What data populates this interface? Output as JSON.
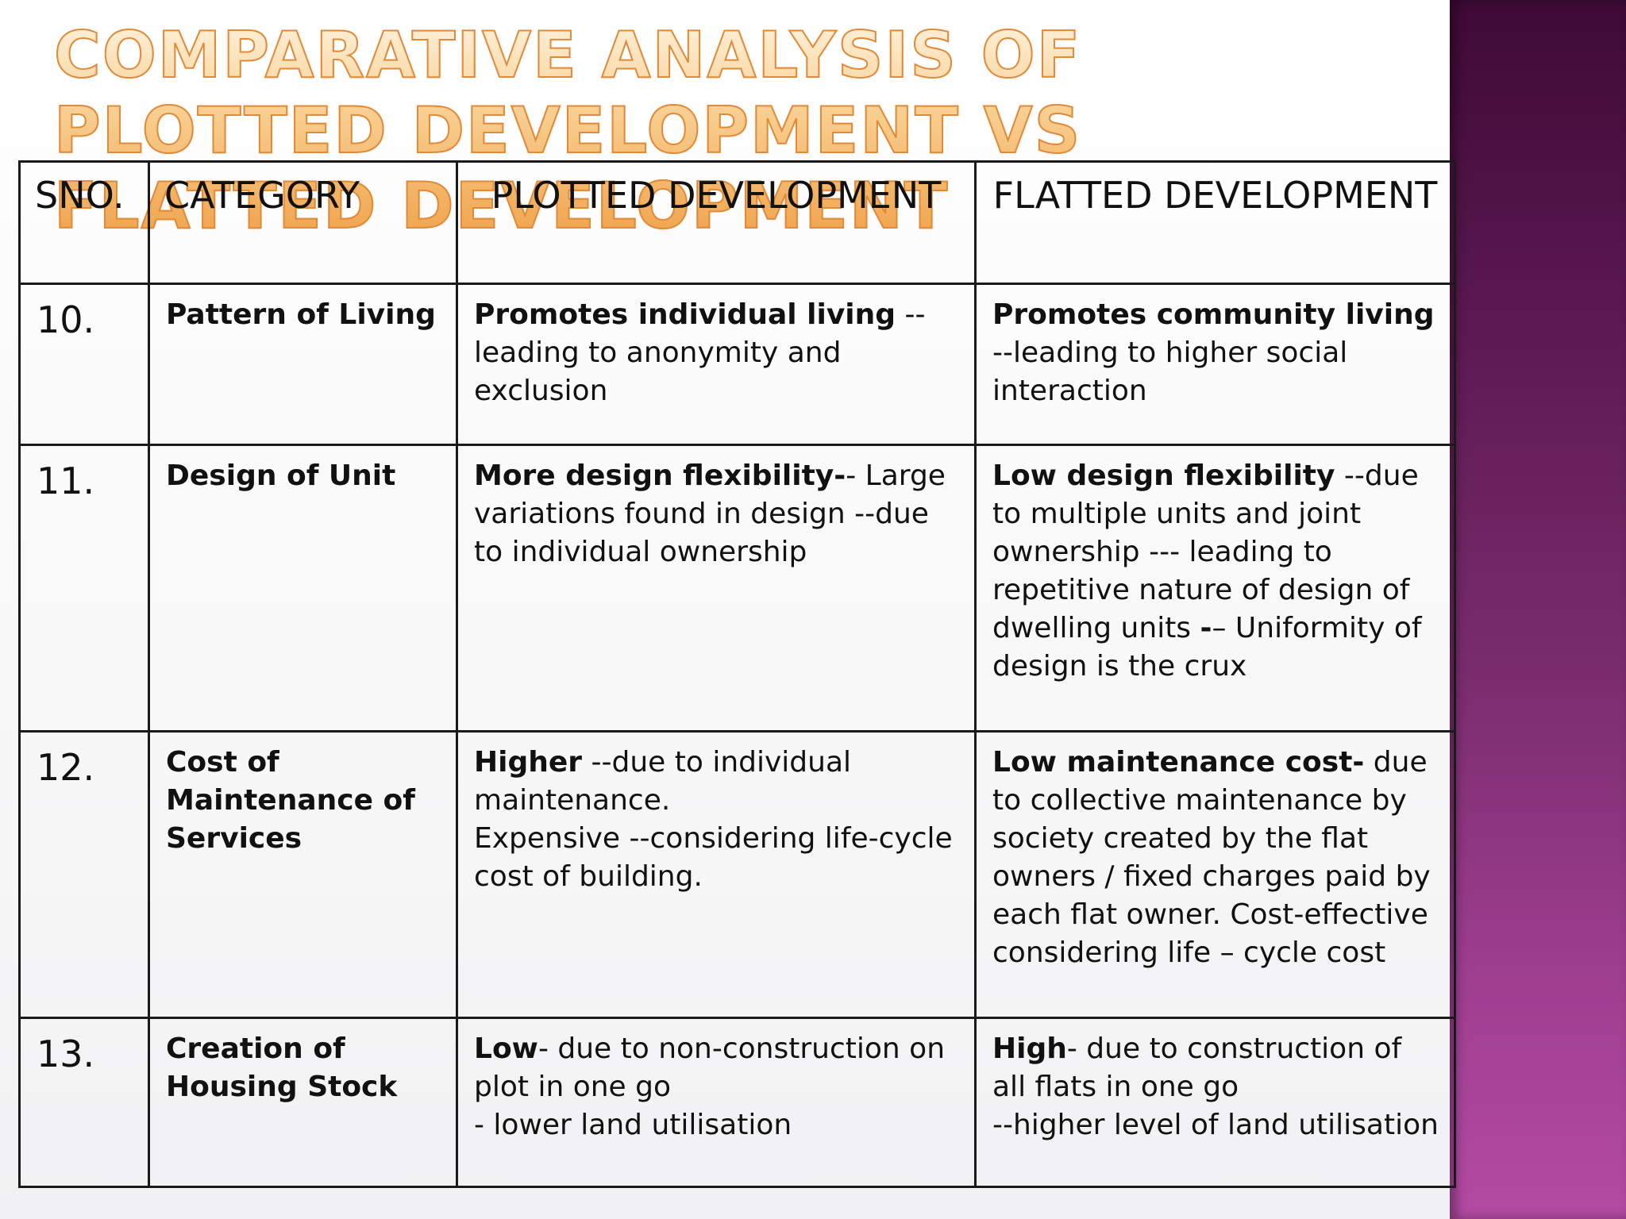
{
  "slide": {
    "title": "Comparative Analysis of Plotted Development vs Flatted Development",
    "colors": {
      "title_fill": "#f4b66a",
      "title_outline": "#e08a3a",
      "side_panel": "#7a2c6e",
      "table_border": "#1a1a1a"
    }
  },
  "table": {
    "headers": [
      "SNO.",
      "CATEGORY",
      "PLOTTED DEVELOPMENT",
      "FLATTED DEVELOPMENT"
    ],
    "rows": [
      {
        "sno": "10.",
        "category": "Pattern of Living",
        "plotted": {
          "bold": "Promotes individual living",
          "text": " --leading to anonymity and exclusion"
        },
        "flatted": {
          "bold": "Promotes community living",
          "text": " --leading to higher social interaction"
        }
      },
      {
        "sno": "11.",
        "category": "Design of Unit",
        "plotted": {
          "bold": "More design flexibility-",
          "text": "- Large variations found in design --due to individual ownership"
        },
        "flatted": {
          "bold": "Low design flexibility",
          "text": " --due to multiple units and joint ownership --- leading to repetitive nature of design of dwelling units ",
          "bold2": "-",
          "text2": "– Uniformity of design is the crux"
        }
      },
      {
        "sno": "12.",
        "category": "Cost of Maintenance of Services",
        "plotted": {
          "bold": "Higher",
          "text": "  --due to individual maintenance.",
          "line2": "Expensive --considering life-cycle cost of building."
        },
        "flatted": {
          "bold": "Low maintenance cost-",
          "text": " due to collective maintenance  by society created by the flat owners / fixed charges paid by each flat owner. Cost-effective considering life – cycle cost"
        }
      },
      {
        "sno": "13.",
        "category": "Creation of Housing Stock",
        "plotted": {
          "bold": "Low",
          "text": "- due to non-construction on plot in one go",
          "line2": "- lower land utilisation"
        },
        "flatted": {
          "bold": "High",
          "text": "- due to construction of all flats in one go",
          "line2": "--higher level of land utilisation"
        }
      }
    ]
  }
}
